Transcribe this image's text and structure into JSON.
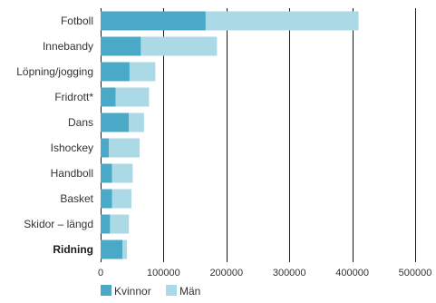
{
  "chart_data": {
    "type": "bar",
    "orientation": "horizontal",
    "stacked": true,
    "categories": [
      "Fotboll",
      "Innebandy",
      "Löpning/jogging",
      "Fridrott*",
      "Dans",
      "Ishockey",
      "Handboll",
      "Basket",
      "Skidor – längd",
      "Ridning"
    ],
    "highlighted_category": "Ridning",
    "series": [
      {
        "name": "Kvinnor",
        "color": "#4aa9c7",
        "values": [
          167000,
          64000,
          46000,
          24000,
          45000,
          13000,
          18000,
          18000,
          15000,
          35000
        ]
      },
      {
        "name": "Män",
        "color": "#acd9e6",
        "values": [
          243000,
          121000,
          41000,
          53000,
          24000,
          49000,
          33000,
          31000,
          30000,
          7000
        ]
      }
    ],
    "x_ticks": [
      "0",
      "100000",
      "200000",
      "300000",
      "400000",
      "500000"
    ],
    "xlim": [
      0,
      500000
    ],
    "grid": "vertical",
    "legend": "bottom-left"
  }
}
